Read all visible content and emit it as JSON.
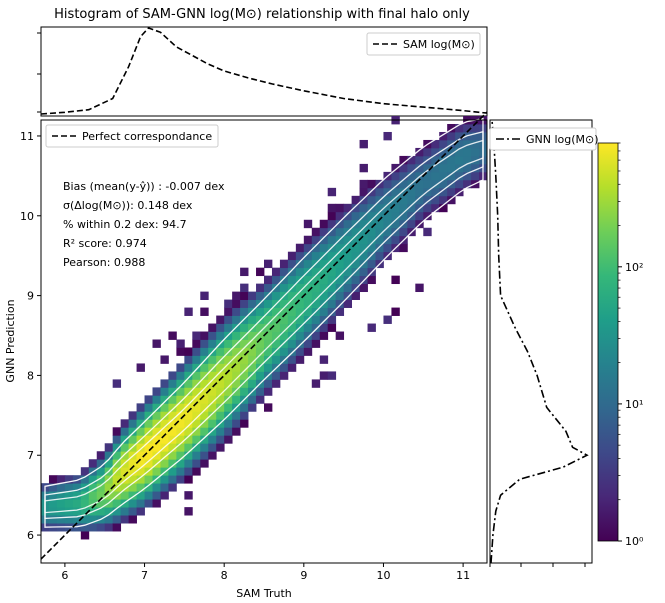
{
  "title": "Histogram of SAM-GNN log(M⊙) relationship with final halo only",
  "main": {
    "xlabel": "SAM Truth",
    "ylabel": "GNN Prediction",
    "xlim": [
      5.7,
      11.3
    ],
    "ylim": [
      5.65,
      11.2
    ],
    "xticks": [
      "6",
      "7",
      "8",
      "9",
      "10",
      "11"
    ],
    "yticks": [
      "6",
      "7",
      "8",
      "9",
      "10",
      "11"
    ],
    "legend": "Perfect correspondance",
    "stats": [
      "Bias (mean(y-ŷ)) : -0.007 dex",
      "σ(Δlog(M⊙)): 0.148 dex",
      "% within 0.2 dex:  94.7",
      "R² score:  0.974",
      "Pearson:  0.988"
    ]
  },
  "top_legend": "SAM log(M⊙)",
  "right_legend": "GNN log(M⊙)",
  "colorbar": {
    "scale": "log",
    "range": [
      1,
      800
    ],
    "tick_labels": [
      "10⁰",
      "10¹",
      "10²"
    ],
    "colors": [
      "#440154",
      "#482878",
      "#3e4989",
      "#31688e",
      "#26828e",
      "#1f9e89",
      "#35b779",
      "#6ece58",
      "#b5de2b",
      "#fde725"
    ]
  },
  "chart_data": [
    {
      "type": "heatmap",
      "title": "Histogram of SAM-GNN log(M⊙) relationship with final halo only",
      "xlabel": "SAM Truth",
      "ylabel": "GNN Prediction",
      "xlim": [
        5.7,
        11.3
      ],
      "ylim": [
        5.65,
        11.2
      ],
      "ridge": {
        "x": [
          5.7,
          6.2,
          6.5,
          6.7,
          7.0,
          7.5,
          8.0,
          8.5,
          9.0,
          9.5,
          10.0,
          10.5,
          11.0,
          11.3
        ],
        "y": [
          6.35,
          6.4,
          6.55,
          6.75,
          7.0,
          7.45,
          7.95,
          8.45,
          8.95,
          9.45,
          9.95,
          10.4,
          10.75,
          10.85
        ],
        "peak_counts": [
          30,
          60,
          200,
          500,
          800,
          700,
          400,
          150,
          80,
          40,
          20,
          12,
          15,
          10
        ],
        "width_dex": [
          0.12,
          0.14,
          0.16,
          0.18,
          0.2,
          0.22,
          0.24,
          0.24,
          0.25,
          0.25,
          0.24,
          0.22,
          0.2,
          0.18
        ]
      },
      "perfect_correspondance": {
        "x": [
          5.7,
          11.3
        ],
        "y": [
          5.7,
          11.3
        ]
      },
      "stats": {
        "bias": -0.007,
        "sigma": 0.148,
        "within_0_2_dex": 94.7,
        "r2": 0.974,
        "pearson": 0.988
      }
    },
    {
      "type": "line",
      "series": [
        {
          "name": "SAM log(M⊙)",
          "x": [
            5.7,
            6.0,
            6.3,
            6.6,
            6.8,
            6.95,
            7.05,
            7.2,
            7.4,
            7.6,
            7.8,
            8.0,
            8.3,
            8.6,
            9.0,
            9.5,
            10.0,
            10.5,
            11.0,
            11.3
          ],
          "density": [
            0.0,
            0.02,
            0.05,
            0.18,
            0.55,
            0.9,
            1.0,
            0.95,
            0.78,
            0.68,
            0.58,
            0.5,
            0.42,
            0.35,
            0.27,
            0.18,
            0.12,
            0.08,
            0.04,
            0.01
          ]
        }
      ]
    },
    {
      "type": "line",
      "series": [
        {
          "name": "GNN log(M⊙)",
          "y": [
            5.65,
            6.0,
            6.3,
            6.5,
            6.7,
            6.85,
            7.0,
            7.1,
            7.3,
            7.6,
            8.0,
            8.3,
            8.6,
            9.0,
            9.5,
            10.0,
            10.5,
            10.9,
            11.2
          ],
          "density": [
            0.0,
            0.02,
            0.05,
            0.1,
            0.3,
            0.75,
            1.0,
            0.85,
            0.78,
            0.58,
            0.48,
            0.38,
            0.25,
            0.1,
            0.08,
            0.07,
            0.05,
            0.03,
            0.01
          ]
        }
      ]
    }
  ]
}
